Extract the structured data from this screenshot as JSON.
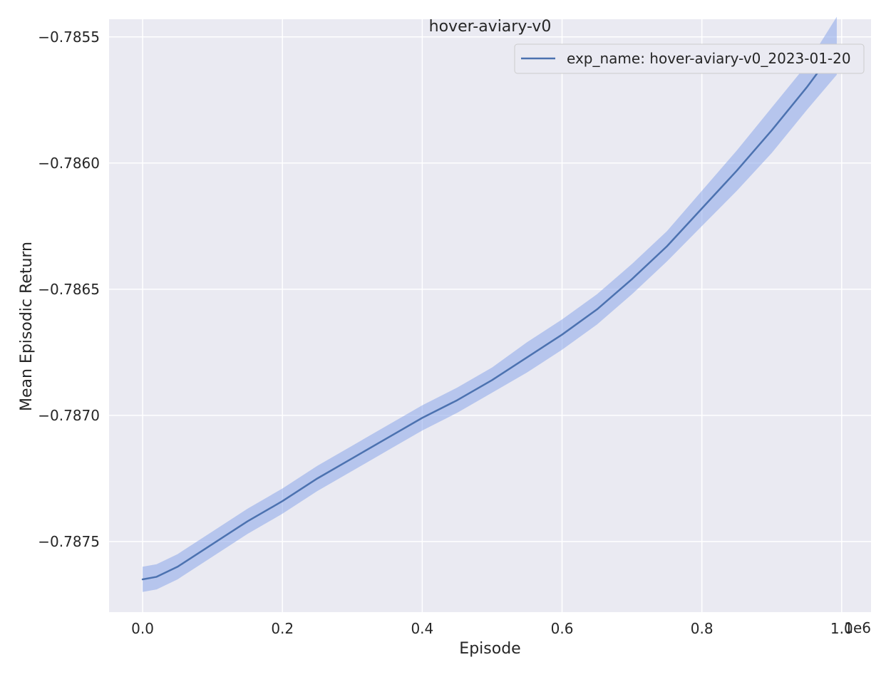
{
  "chart_data": {
    "type": "line",
    "title": "hover-aviary-v0",
    "xlabel": "Episode",
    "ylabel": "Mean Episodic Return",
    "x_offset_text": "1e6",
    "xlim": [
      -0.048,
      1.042
    ],
    "ylim": [
      -0.78778,
      -0.78543
    ],
    "xticks": [
      0.0,
      0.2,
      0.4,
      0.6,
      0.8,
      1.0
    ],
    "xtick_labels": [
      "0.0",
      "0.2",
      "0.4",
      "0.6",
      "0.8",
      "1.0"
    ],
    "yticks": [
      -0.7875,
      -0.787,
      -0.7865,
      -0.786,
      -0.7855
    ],
    "ytick_labels": [
      "−0.7875",
      "−0.7870",
      "−0.7865",
      "−0.7860",
      "−0.7855"
    ],
    "grid": true,
    "legend_position": "top-right",
    "series": [
      {
        "name": "exp_name: hover-aviary-v0_2023-01-20",
        "color": "#4c72b0",
        "band_color": "#8aa5ea",
        "x": [
          0.0,
          0.02,
          0.05,
          0.1,
          0.15,
          0.2,
          0.25,
          0.3,
          0.35,
          0.4,
          0.45,
          0.5,
          0.55,
          0.6,
          0.65,
          0.7,
          0.75,
          0.8,
          0.85,
          0.9,
          0.95,
          0.993
        ],
        "y": [
          -0.78765,
          -0.78764,
          -0.7876,
          -0.78751,
          -0.78742,
          -0.78734,
          -0.78725,
          -0.78717,
          -0.78709,
          -0.78701,
          -0.78694,
          -0.78686,
          -0.78677,
          -0.78668,
          -0.78658,
          -0.78646,
          -0.78633,
          -0.78618,
          -0.78603,
          -0.78587,
          -0.7857,
          -0.78554
        ],
        "lower": [
          -0.7877,
          -0.78769,
          -0.78765,
          -0.78756,
          -0.78747,
          -0.78739,
          -0.7873,
          -0.78722,
          -0.78714,
          -0.78706,
          -0.78699,
          -0.78691,
          -0.78683,
          -0.78674,
          -0.78664,
          -0.78652,
          -0.78639,
          -0.78625,
          -0.78611,
          -0.78596,
          -0.78579,
          -0.78565
        ],
        "upper": [
          -0.7876,
          -0.78759,
          -0.78755,
          -0.78746,
          -0.78737,
          -0.78729,
          -0.7872,
          -0.78712,
          -0.78704,
          -0.78696,
          -0.78689,
          -0.78681,
          -0.78671,
          -0.78662,
          -0.78652,
          -0.7864,
          -0.78627,
          -0.78611,
          -0.78595,
          -0.78578,
          -0.78561,
          -0.78542
        ]
      }
    ]
  }
}
